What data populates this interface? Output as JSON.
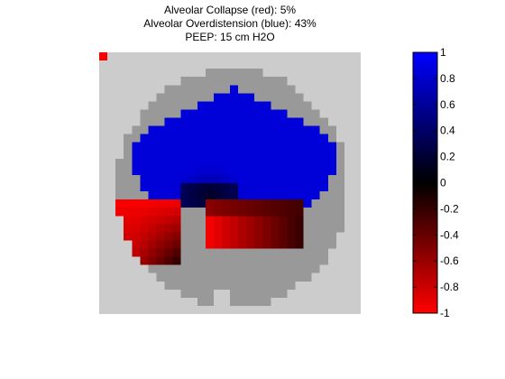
{
  "chart_data": {
    "type": "heatmap",
    "title_lines": [
      "Alveolar Collapse (red):  5%",
      "Alveolar Overdistension (blue): 43%",
      "PEEP: 15 cm H2O"
    ],
    "colorbar": {
      "range": [
        -1,
        1
      ],
      "ticks": [
        "1",
        "0.8",
        "0.6",
        "0.4",
        "0.2",
        "0",
        "-0.2",
        "-0.4",
        "-0.6",
        "-0.8",
        "-1"
      ],
      "colors": {
        "negative": "#ff0000",
        "zero": "#000000",
        "positive": "#0000ff"
      }
    },
    "grid": {
      "rows": 32,
      "cols": 32,
      "cell_value_range": [
        -1,
        1
      ]
    },
    "colors": {
      "background_region": "#cccccc",
      "lung_region": "#999999",
      "marker": "#ff0000"
    }
  }
}
